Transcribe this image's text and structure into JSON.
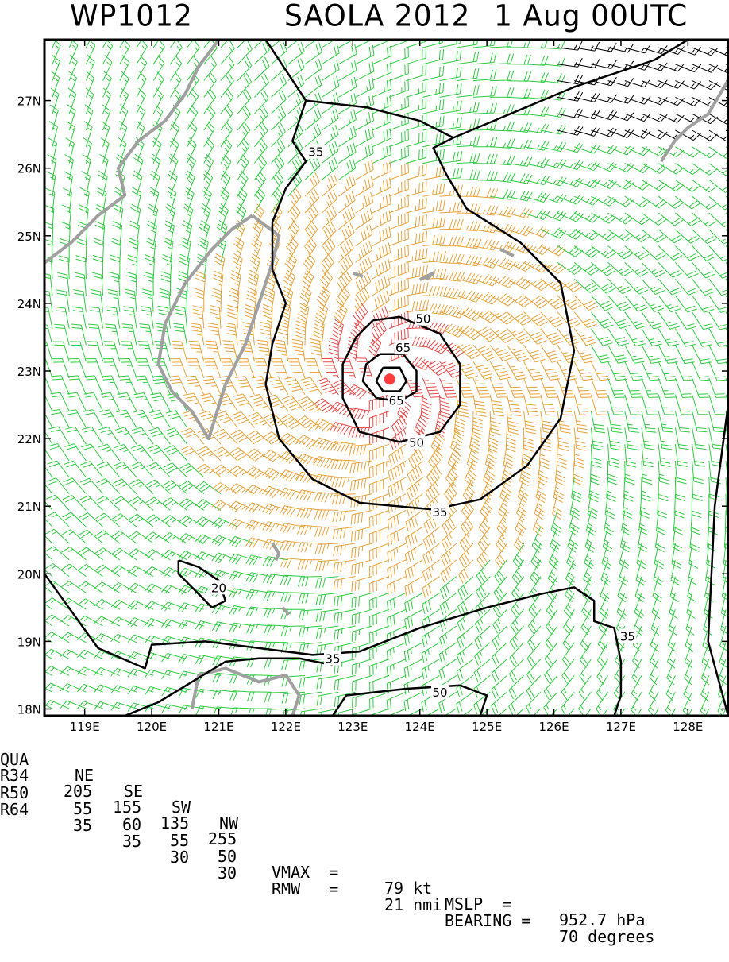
{
  "title": {
    "storm_id": "WP1012",
    "storm_name": "SAOLA 2012",
    "datetime": "1 Aug 00UTC"
  },
  "map": {
    "lon_range": [
      118.4,
      128.6
    ],
    "lat_range": [
      17.9,
      27.9
    ],
    "lon_ticks": [
      "119E",
      "120E",
      "121E",
      "122E",
      "123E",
      "124E",
      "125E",
      "126E",
      "127E",
      "128E"
    ],
    "lat_ticks": [
      "18N",
      "19N",
      "20N",
      "21N",
      "22N",
      "23N",
      "24N",
      "25N",
      "26N",
      "27N"
    ],
    "storm_center": {
      "lon": 123.55,
      "lat": 22.88
    },
    "contour_labels": [
      {
        "text": "35",
        "lon": 122.45,
        "lat": 26.25
      },
      {
        "text": "50",
        "lon": 124.05,
        "lat": 23.78
      },
      {
        "text": "65",
        "lon": 123.75,
        "lat": 23.35
      },
      {
        "text": "65",
        "lon": 123.65,
        "lat": 22.57
      },
      {
        "text": "50",
        "lon": 123.95,
        "lat": 21.95
      },
      {
        "text": "35",
        "lon": 124.3,
        "lat": 20.92
      },
      {
        "text": "20",
        "lon": 121.0,
        "lat": 19.8
      },
      {
        "text": "35",
        "lon": 127.1,
        "lat": 19.08
      },
      {
        "text": "35",
        "lon": 122.7,
        "lat": 18.75
      },
      {
        "text": "50",
        "lon": 124.3,
        "lat": 18.25
      }
    ],
    "colors": {
      "weak_barbs": "#2ecc40",
      "tropical_storm_barbs": "#e8a33a",
      "storm_barbs": "#e84a4a",
      "coastline": "#a0a0a0",
      "contours": "#000000",
      "center": "#ff3b3b"
    }
  },
  "info": {
    "quadrant_header": [
      "QUA",
      "NE",
      "SE",
      "SW",
      "NW"
    ],
    "r34": [
      "R34",
      "205",
      "155",
      "135",
      "255"
    ],
    "r50": [
      "R50",
      "55",
      "60",
      "55",
      "50"
    ],
    "r64": [
      "R64",
      "35",
      "35",
      "30",
      "30"
    ],
    "vmax_label": "VMAX  =",
    "vmax_value": "79 kt",
    "mslp_label": "MSLP  =",
    "mslp_value": "952.7 hPa",
    "rmw_label": "RMW   =",
    "rmw_value": "21 nmi",
    "bearing_label": "BEARING =",
    "bearing_value": "70 degrees"
  }
}
